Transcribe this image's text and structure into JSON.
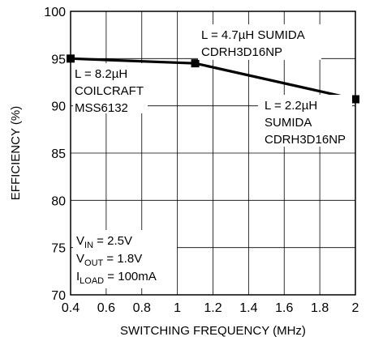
{
  "chart_data": {
    "type": "line",
    "xlabel": "SWITCHING FREQUENCY (MHz)",
    "ylabel": "EFFICIENCY (%)",
    "xlim": [
      0.4,
      2
    ],
    "ylim": [
      70,
      100
    ],
    "x_ticks": [
      "0.4",
      "0.6",
      "0.8",
      "1",
      "1.2",
      "1.4",
      "1.6",
      "1.8",
      "2"
    ],
    "y_ticks": [
      "70",
      "75",
      "80",
      "85",
      "90",
      "95",
      "100"
    ],
    "grid": true,
    "series": [
      {
        "x": [
          0.4,
          1.1,
          2.0
        ],
        "y": [
          95.0,
          94.5,
          90.7
        ],
        "color": "#000000"
      }
    ],
    "annotations": {
      "coilcraft": [
        "L = 8.2µH",
        "COILCRAFT",
        "MSS6132"
      ],
      "sumida47": [
        "L = 4.7µH SUMIDA",
        "CDRH3D16NP"
      ],
      "sumida22": [
        "L = 2.2µH",
        "SUMIDA",
        "CDRH3D16NP"
      ],
      "conditions": [
        {
          "main": "V",
          "sub": "IN",
          "rest": " = 2.5V"
        },
        {
          "main": "V",
          "sub": "OUT",
          "rest": " = 1.8V"
        },
        {
          "main": "I",
          "sub": "LOAD",
          "rest": " = 100mA"
        }
      ]
    }
  }
}
